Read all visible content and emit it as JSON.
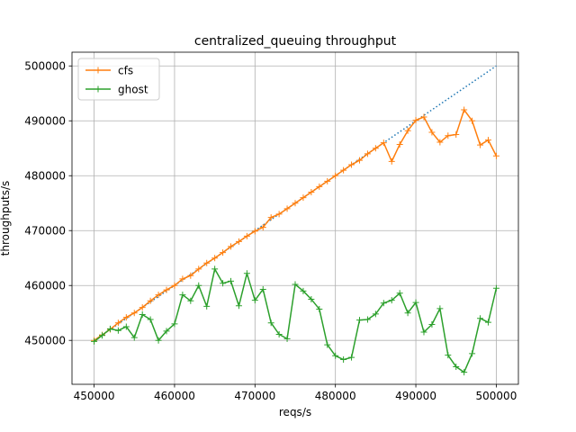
{
  "chart_data": {
    "type": "line",
    "title": "centralized_queuing throughput",
    "xlabel": "reqs/s",
    "ylabel": "throughputs/s",
    "xlim": [
      447250,
      502750
    ],
    "ylim": [
      442000,
      502500
    ],
    "grid": true,
    "legend_position": "top-left",
    "x_ticks": [
      450000,
      460000,
      470000,
      480000,
      490000,
      500000
    ],
    "x_tick_labels": [
      "450000",
      "460000",
      "470000",
      "480000",
      "490000",
      "500000"
    ],
    "y_ticks": [
      450000,
      460000,
      470000,
      480000,
      490000,
      500000
    ],
    "y_tick_labels": [
      "450000",
      "460000",
      "470000",
      "480000",
      "490000",
      "500000"
    ],
    "reference_line": {
      "style": "dotted",
      "color": "#1f77b4",
      "x": [
        450000,
        500000
      ],
      "y": [
        450000,
        500000
      ]
    },
    "x": [
      450000,
      451000,
      452000,
      453000,
      454000,
      455000,
      456000,
      457000,
      458000,
      459000,
      460000,
      461000,
      462000,
      463000,
      464000,
      465000,
      466000,
      467000,
      468000,
      469000,
      470000,
      471000,
      472000,
      473000,
      474000,
      475000,
      476000,
      477000,
      478000,
      479000,
      480000,
      481000,
      482000,
      483000,
      484000,
      485000,
      486000,
      487000,
      488000,
      489000,
      490000,
      491000,
      492000,
      493000,
      494000,
      495000,
      496000,
      497000,
      498000,
      499000,
      500000
    ],
    "series": [
      {
        "name": "cfs",
        "color": "#ff7f0e",
        "marker": "plus",
        "values": [
          450000,
          451000,
          452000,
          453200,
          454200,
          455000,
          456000,
          457200,
          458300,
          459200,
          460000,
          461200,
          461800,
          463000,
          464100,
          465000,
          466000,
          467100,
          468000,
          469000,
          469900,
          470600,
          472400,
          473000,
          474000,
          475000,
          476000,
          477000,
          478000,
          479000,
          480000,
          481000,
          482000,
          482800,
          484000,
          485000,
          486000,
          482600,
          485700,
          488200,
          490100,
          490700,
          487900,
          486100,
          487300,
          487500,
          492000,
          490000,
          485600,
          486500,
          483600
        ]
      },
      {
        "name": "ghost",
        "color": "#2ca02c",
        "marker": "plus",
        "values": [
          449800,
          450900,
          452100,
          451800,
          452500,
          450500,
          454700,
          453800,
          450000,
          451700,
          453000,
          458300,
          457200,
          460000,
          456200,
          463000,
          460400,
          460800,
          456300,
          462200,
          457300,
          459300,
          453200,
          451100,
          450300,
          460200,
          459000,
          457500,
          455700,
          449200,
          447200,
          446500,
          446900,
          453700,
          453800,
          454800,
          456800,
          457300,
          458600,
          455000,
          456900,
          451500,
          452900,
          455800,
          447300,
          445200,
          444200,
          447600,
          454000,
          453300,
          459500
        ]
      }
    ]
  }
}
